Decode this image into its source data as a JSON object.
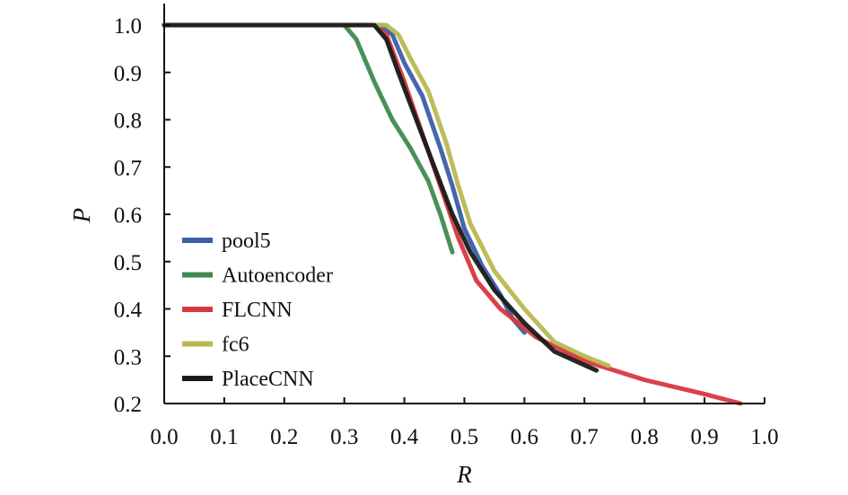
{
  "chart_data": {
    "type": "line",
    "title": "",
    "xlabel": "R",
    "ylabel": "P",
    "xlim": [
      0.0,
      1.0
    ],
    "ylim": [
      0.2,
      1.0
    ],
    "xticks": [
      "0.0",
      "0.1",
      "0.2",
      "0.3",
      "0.4",
      "0.5",
      "0.6",
      "0.7",
      "0.8",
      "0.9",
      "1.0"
    ],
    "yticks": [
      "0.2",
      "0.3",
      "0.4",
      "0.5",
      "0.6",
      "0.7",
      "0.8",
      "0.9",
      "1.0"
    ],
    "grid": false,
    "legend_position": "left",
    "series": [
      {
        "name": "pool5",
        "color": "#3b5ea8",
        "points": [
          [
            0.0,
            1.0
          ],
          [
            0.36,
            1.0
          ],
          [
            0.38,
            0.98
          ],
          [
            0.4,
            0.92
          ],
          [
            0.43,
            0.85
          ],
          [
            0.46,
            0.74
          ],
          [
            0.48,
            0.66
          ],
          [
            0.5,
            0.57
          ],
          [
            0.53,
            0.49
          ],
          [
            0.56,
            0.43
          ],
          [
            0.58,
            0.38
          ],
          [
            0.6,
            0.35
          ]
        ]
      },
      {
        "name": "Autoencoder",
        "color": "#3f8a4f",
        "points": [
          [
            0.0,
            1.0
          ],
          [
            0.3,
            1.0
          ],
          [
            0.32,
            0.97
          ],
          [
            0.35,
            0.88
          ],
          [
            0.38,
            0.8
          ],
          [
            0.41,
            0.74
          ],
          [
            0.44,
            0.67
          ],
          [
            0.46,
            0.6
          ],
          [
            0.48,
            0.52
          ]
        ]
      },
      {
        "name": "FLCNN",
        "color": "#d9363e",
        "points": [
          [
            0.0,
            1.0
          ],
          [
            0.35,
            1.0
          ],
          [
            0.37,
            0.98
          ],
          [
            0.4,
            0.88
          ],
          [
            0.43,
            0.77
          ],
          [
            0.46,
            0.66
          ],
          [
            0.49,
            0.55
          ],
          [
            0.52,
            0.46
          ],
          [
            0.56,
            0.4
          ],
          [
            0.62,
            0.34
          ],
          [
            0.7,
            0.29
          ],
          [
            0.8,
            0.25
          ],
          [
            0.9,
            0.22
          ],
          [
            0.96,
            0.2
          ]
        ]
      },
      {
        "name": "fc6",
        "color": "#b9b850",
        "points": [
          [
            0.0,
            1.0
          ],
          [
            0.37,
            1.0
          ],
          [
            0.39,
            0.98
          ],
          [
            0.41,
            0.93
          ],
          [
            0.44,
            0.86
          ],
          [
            0.47,
            0.75
          ],
          [
            0.49,
            0.66
          ],
          [
            0.51,
            0.58
          ],
          [
            0.55,
            0.48
          ],
          [
            0.6,
            0.4
          ],
          [
            0.65,
            0.33
          ],
          [
            0.7,
            0.3
          ],
          [
            0.74,
            0.28
          ]
        ]
      },
      {
        "name": "PlaceCNN",
        "color": "#1a1a1a",
        "points": [
          [
            0.0,
            1.0
          ],
          [
            0.35,
            1.0
          ],
          [
            0.37,
            0.97
          ],
          [
            0.39,
            0.9
          ],
          [
            0.42,
            0.8
          ],
          [
            0.45,
            0.7
          ],
          [
            0.48,
            0.6
          ],
          [
            0.51,
            0.52
          ],
          [
            0.55,
            0.44
          ],
          [
            0.6,
            0.37
          ],
          [
            0.65,
            0.31
          ],
          [
            0.72,
            0.27
          ]
        ]
      }
    ]
  }
}
